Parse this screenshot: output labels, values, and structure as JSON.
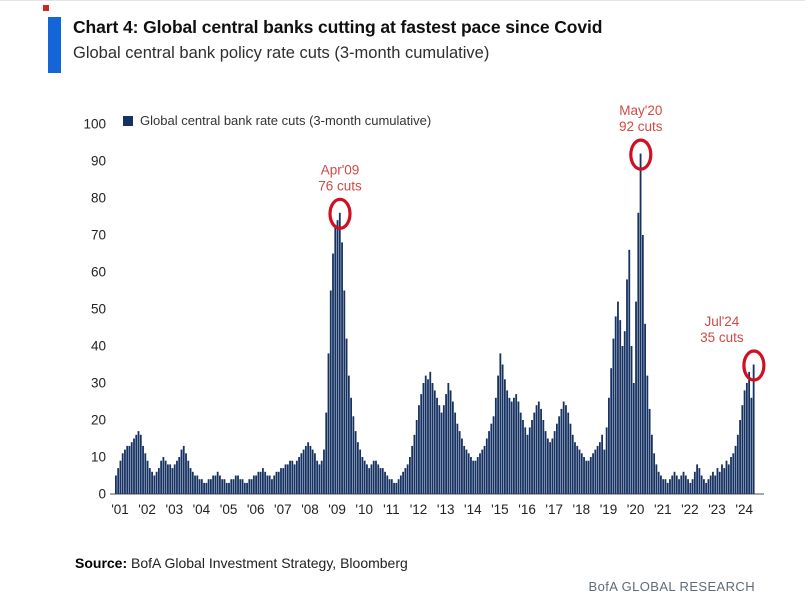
{
  "header": {
    "title": "Chart 4: Global central banks cutting at fastest pace since Covid",
    "subtitle": "Global central bank policy rate cuts (3-month cumulative)"
  },
  "legend": {
    "label": "Global central bank rate cuts (3-month cumulative)"
  },
  "footer": {
    "source_label": "Source:",
    "source_text": "BofA Global Investment Strategy, Bloomberg",
    "brand": "BofA GLOBAL RESEARCH"
  },
  "colors": {
    "bar": "#163263",
    "accent_bar": "#1465d8",
    "annotation_text": "#cf4a44",
    "annotation_circle": "#d10f20",
    "axis_line": "#8a8a8a",
    "tick_text": "#222222"
  },
  "chart_data": {
    "type": "bar",
    "title": "Global central bank policy rate cuts (3-month cumulative)",
    "ylabel": "rate cuts (3-month cumulative)",
    "xlabel": "",
    "ylim": [
      0,
      100
    ],
    "y_ticks": [
      0,
      10,
      20,
      30,
      40,
      50,
      60,
      70,
      80,
      90,
      100
    ],
    "x_tick_labels": [
      "'01",
      "'02",
      "'03",
      "'04",
      "'05",
      "'06",
      "'07",
      "'08",
      "'09",
      "'10",
      "'11",
      "'12",
      "'13",
      "'14",
      "'15",
      "'16",
      "'17",
      "'18",
      "'19",
      "'20",
      "'21",
      "'22",
      "'23",
      "'24"
    ],
    "x_start": "2001-01",
    "x_end": "2024-07",
    "grid": false,
    "legend_position": "top-left",
    "series": [
      {
        "name": "Global central bank rate cuts (3-month cumulative)",
        "monthly_values_by_year": {
          "2001": [
            5,
            7,
            9,
            11,
            12,
            13,
            13,
            14,
            15,
            16,
            17,
            16
          ],
          "2002": [
            13,
            11,
            9,
            7,
            6,
            5,
            6,
            7,
            9,
            10,
            9,
            8
          ],
          "2003": [
            8,
            7,
            8,
            9,
            10,
            12,
            13,
            11,
            9,
            7,
            6,
            5
          ],
          "2004": [
            5,
            4,
            4,
            3,
            3,
            4,
            4,
            5,
            5,
            6,
            5,
            4
          ],
          "2005": [
            4,
            3,
            3,
            4,
            4,
            5,
            5,
            4,
            4,
            3,
            3,
            4
          ],
          "2006": [
            4,
            5,
            5,
            6,
            6,
            7,
            6,
            5,
            5,
            4,
            5,
            6
          ],
          "2007": [
            6,
            7,
            7,
            8,
            8,
            9,
            9,
            8,
            9,
            10,
            11,
            12
          ],
          "2008": [
            13,
            14,
            13,
            12,
            11,
            9,
            8,
            9,
            12,
            22,
            38,
            55
          ],
          "2009": [
            65,
            72,
            74,
            76,
            68,
            55,
            42,
            32,
            26,
            21,
            17,
            14
          ],
          "2010": [
            12,
            10,
            9,
            8,
            7,
            8,
            9,
            9,
            8,
            7,
            7,
            6
          ],
          "2011": [
            5,
            4,
            4,
            3,
            3,
            4,
            5,
            6,
            7,
            8,
            10,
            13
          ],
          "2012": [
            16,
            20,
            24,
            27,
            30,
            32,
            31,
            33,
            30,
            28,
            26,
            24
          ],
          "2013": [
            22,
            24,
            27,
            30,
            28,
            25,
            22,
            19,
            17,
            15,
            13,
            12
          ],
          "2014": [
            11,
            10,
            9,
            9,
            10,
            11,
            12,
            13,
            15,
            17,
            19,
            21
          ],
          "2015": [
            26,
            32,
            38,
            35,
            31,
            28,
            26,
            25,
            26,
            27,
            25,
            22
          ],
          "2016": [
            20,
            18,
            16,
            18,
            20,
            22,
            24,
            25,
            23,
            20,
            17,
            15
          ],
          "2017": [
            14,
            15,
            17,
            19,
            21,
            23,
            25,
            24,
            22,
            19,
            16,
            14
          ],
          "2018": [
            13,
            12,
            11,
            10,
            9,
            9,
            10,
            11,
            12,
            13,
            14,
            16
          ],
          "2019": [
            12,
            18,
            26,
            34,
            42,
            48,
            52,
            47,
            40,
            44,
            58,
            66
          ],
          "2020": [
            40,
            30,
            52,
            76,
            92,
            70,
            46,
            32,
            23,
            16,
            11,
            8
          ],
          "2021": [
            6,
            5,
            4,
            4,
            3,
            4,
            5,
            6,
            5,
            4,
            5,
            6
          ],
          "2022": [
            5,
            4,
            3,
            4,
            6,
            8,
            7,
            5,
            4,
            3,
            4,
            5
          ],
          "2023": [
            6,
            5,
            7,
            6,
            8,
            7,
            9,
            8,
            10,
            11,
            13,
            16
          ],
          "2024": [
            20,
            24,
            28,
            30,
            33,
            26,
            35
          ]
        }
      }
    ],
    "annotations": [
      {
        "date_label": "Apr'09",
        "cuts_label": "76 cuts",
        "year": 2009,
        "month": 4,
        "value": 76
      },
      {
        "date_label": "May'20",
        "cuts_label": "92 cuts",
        "year": 2020,
        "month": 5,
        "value": 92
      },
      {
        "date_label": "Jul'24",
        "cuts_label": "35 cuts",
        "year": 2024,
        "month": 7,
        "value": 35
      }
    ]
  }
}
